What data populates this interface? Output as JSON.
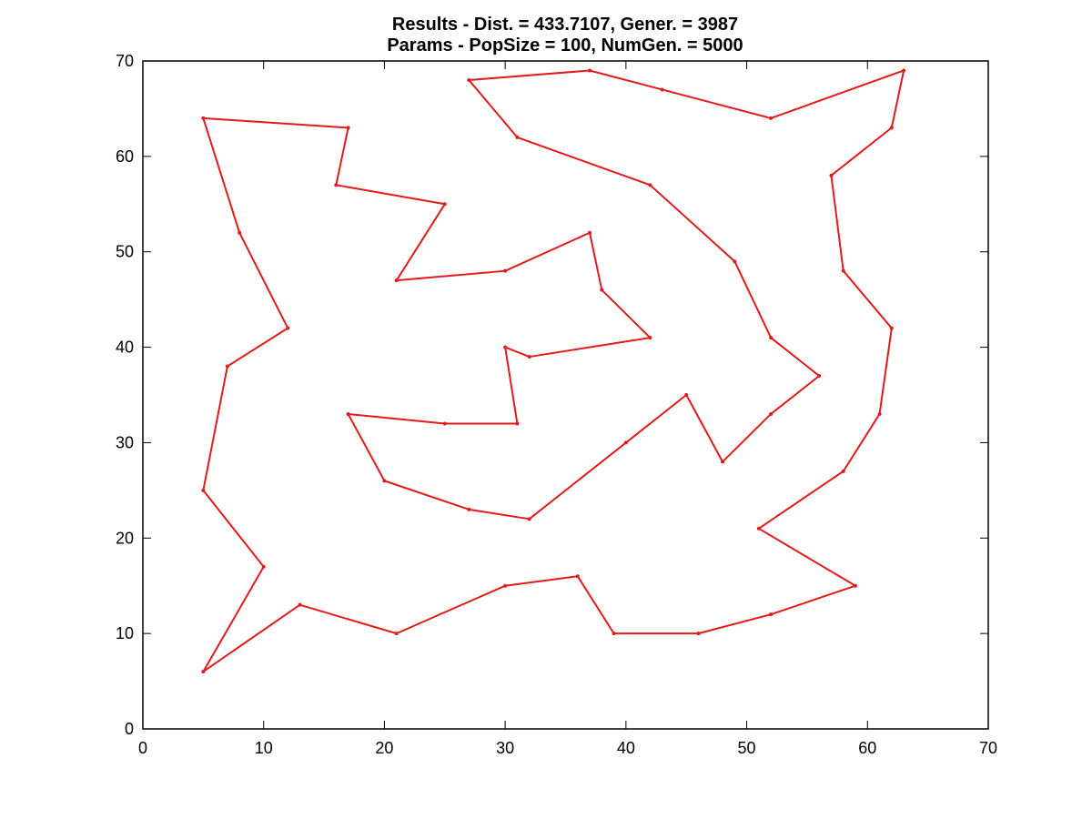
{
  "chart_data": {
    "type": "line",
    "title_lines": [
      "Results - Dist. = 433.7107, Gener. = 3987",
      "Params - PopSize = 100, NumGen. = 5000"
    ],
    "xlabel": "",
    "ylabel": "",
    "xlim": [
      0,
      70
    ],
    "ylim": [
      0,
      70
    ],
    "x_ticks": [
      0,
      10,
      20,
      30,
      40,
      50,
      60,
      70
    ],
    "y_ticks": [
      0,
      10,
      20,
      30,
      40,
      50,
      60,
      70
    ],
    "grid": false,
    "colors": {
      "route": "#e31a1c",
      "axes": "#000000"
    },
    "series": [
      {
        "closed": true,
        "points": [
          [
            5,
            64
          ],
          [
            17,
            63
          ],
          [
            16,
            57
          ],
          [
            25,
            55
          ],
          [
            21,
            47
          ],
          [
            30,
            48
          ],
          [
            37,
            52
          ],
          [
            38,
            46
          ],
          [
            42,
            41
          ],
          [
            32,
            39
          ],
          [
            30,
            40
          ],
          [
            31,
            32
          ],
          [
            25,
            32
          ],
          [
            17,
            33
          ],
          [
            20,
            26
          ],
          [
            27,
            23
          ],
          [
            32,
            22
          ],
          [
            40,
            30
          ],
          [
            45,
            35
          ],
          [
            48,
            28
          ],
          [
            52,
            33
          ],
          [
            56,
            37
          ],
          [
            52,
            41
          ],
          [
            49,
            49
          ],
          [
            42,
            57
          ],
          [
            31,
            62
          ],
          [
            27,
            68
          ],
          [
            37,
            69
          ],
          [
            43,
            67
          ],
          [
            52,
            64
          ],
          [
            63,
            69
          ],
          [
            62,
            63
          ],
          [
            57,
            58
          ],
          [
            58,
            48
          ],
          [
            62,
            42
          ],
          [
            61,
            33
          ],
          [
            58,
            27
          ],
          [
            51,
            21
          ],
          [
            59,
            15
          ],
          [
            52,
            12
          ],
          [
            46,
            10
          ],
          [
            39,
            10
          ],
          [
            36,
            16
          ],
          [
            30,
            15
          ],
          [
            21,
            10
          ],
          [
            13,
            13
          ],
          [
            5,
            6
          ],
          [
            10,
            17
          ],
          [
            5,
            25
          ],
          [
            7,
            38
          ],
          [
            12,
            42
          ],
          [
            8,
            52
          ]
        ]
      }
    ]
  }
}
